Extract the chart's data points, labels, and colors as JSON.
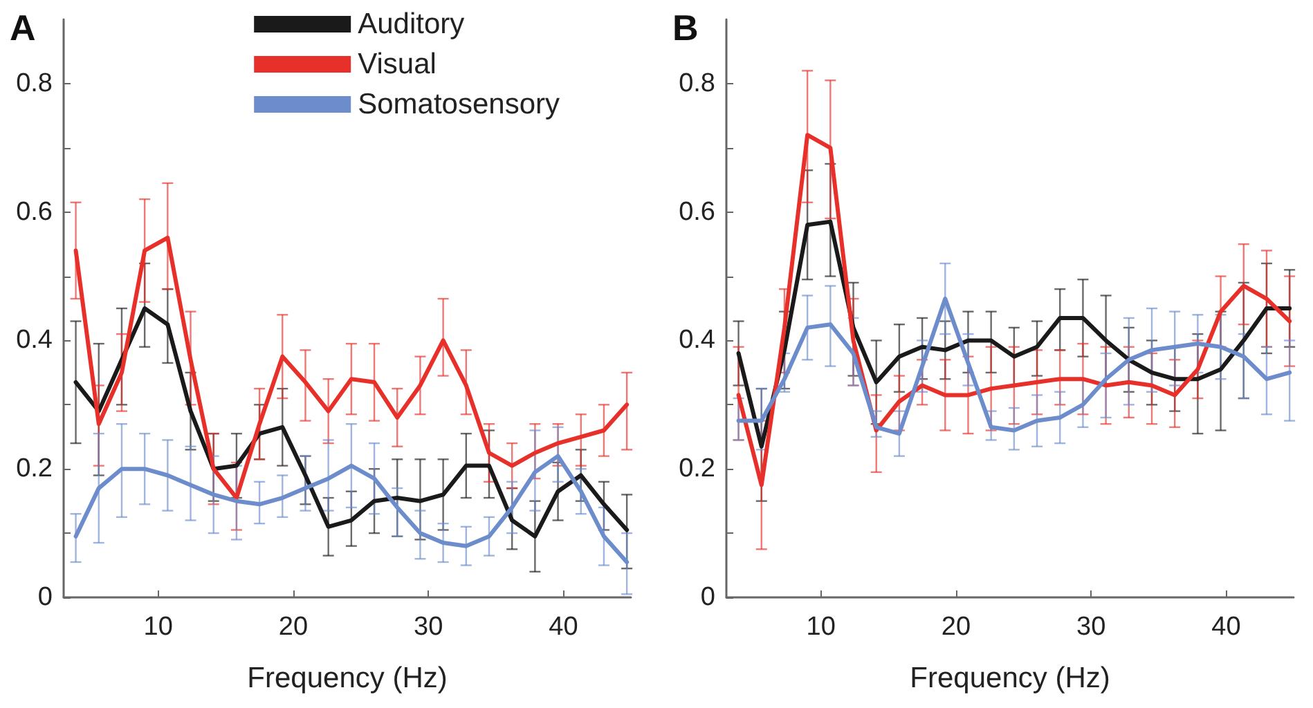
{
  "chart_data": [
    {
      "type": "line",
      "title": "A",
      "xlabel": "Frequency (Hz)",
      "x": [
        3.9,
        5.6,
        7.3,
        9.0,
        10.7,
        12.4,
        14.1,
        15.8,
        17.5,
        19.2,
        20.9,
        22.6,
        24.3,
        26.0,
        27.7,
        29.4,
        31.1,
        32.8,
        34.5,
        36.2,
        37.9,
        39.6,
        41.3,
        43.0,
        44.7
      ],
      "xlim": [
        3,
        45
      ],
      "xticks": [
        10,
        20,
        30,
        40
      ],
      "ylim": [
        0,
        0.9
      ],
      "yticks": [
        0,
        {
          "value": 0.1,
          "label": null
        },
        0.2,
        {
          "value": 0.3,
          "label": null
        },
        0.4,
        {
          "value": 0.5,
          "label": null
        },
        0.6,
        {
          "value": 0.7,
          "label": null
        },
        0.8
      ],
      "grid": false,
      "legend": "top",
      "marker": "none",
      "line_style": "solid",
      "series": [
        {
          "name": "Auditory",
          "color": "#1a1a1a",
          "values": [
            0.335,
            0.29,
            0.37,
            0.45,
            0.425,
            0.29,
            0.2,
            0.205,
            0.255,
            0.265,
            0.19,
            0.11,
            0.12,
            0.15,
            0.155,
            0.15,
            0.16,
            0.205,
            0.205,
            0.12,
            0.095,
            0.165,
            0.19,
            0.145,
            0.105
          ],
          "errors": [
            [
              0.24,
              0.43
            ],
            [
              0.19,
              0.395
            ],
            [
              0.3,
              0.45
            ],
            [
              0.39,
              0.52
            ],
            [
              0.365,
              0.48
            ],
            [
              0.23,
              0.35
            ],
            [
              0.15,
              0.255
            ],
            [
              0.155,
              0.255
            ],
            [
              0.215,
              0.3
            ],
            [
              0.205,
              0.325
            ],
            [
              0.145,
              0.22
            ],
            [
              0.065,
              0.155
            ],
            [
              0.08,
              0.165
            ],
            [
              0.1,
              0.2
            ],
            [
              0.095,
              0.215
            ],
            [
              0.09,
              0.215
            ],
            [
              0.105,
              0.215
            ],
            [
              0.155,
              0.255
            ],
            [
              0.155,
              0.26
            ],
            [
              0.075,
              0.17
            ],
            [
              0.04,
              0.15
            ],
            [
              0.12,
              0.21
            ],
            [
              0.15,
              0.23
            ],
            [
              0.105,
              0.18
            ],
            [
              0.045,
              0.16
            ]
          ]
        },
        {
          "name": "Visual",
          "color": "#e8302a",
          "values": [
            0.54,
            0.27,
            0.35,
            0.54,
            0.56,
            0.37,
            0.2,
            0.155,
            0.27,
            0.375,
            0.335,
            0.29,
            0.34,
            0.335,
            0.28,
            0.33,
            0.4,
            0.33,
            0.225,
            0.205,
            0.225,
            0.24,
            0.25,
            0.26,
            0.3
          ],
          "errors": [
            [
              0.465,
              0.615
            ],
            [
              0.205,
              0.33
            ],
            [
              0.29,
              0.41
            ],
            [
              0.46,
              0.62
            ],
            [
              0.48,
              0.645
            ],
            [
              0.3,
              0.445
            ],
            [
              0.145,
              0.255
            ],
            [
              0.105,
              0.21
            ],
            [
              0.215,
              0.325
            ],
            [
              0.31,
              0.44
            ],
            [
              0.275,
              0.385
            ],
            [
              0.24,
              0.34
            ],
            [
              0.285,
              0.395
            ],
            [
              0.275,
              0.395
            ],
            [
              0.235,
              0.325
            ],
            [
              0.285,
              0.375
            ],
            [
              0.345,
              0.465
            ],
            [
              0.285,
              0.385
            ],
            [
              0.18,
              0.27
            ],
            [
              0.17,
              0.24
            ],
            [
              0.185,
              0.27
            ],
            [
              0.205,
              0.27
            ],
            [
              0.205,
              0.285
            ],
            [
              0.22,
              0.3
            ],
            [
              0.23,
              0.35
            ]
          ]
        },
        {
          "name": "Somatosensory",
          "color": "#6c8ccc",
          "values": [
            0.095,
            0.17,
            0.2,
            0.2,
            0.19,
            0.175,
            0.16,
            0.15,
            0.145,
            0.155,
            0.17,
            0.185,
            0.205,
            0.185,
            0.14,
            0.1,
            0.085,
            0.08,
            0.095,
            0.14,
            0.195,
            0.22,
            0.165,
            0.095,
            0.055
          ],
          "errors": [
            [
              0.055,
              0.13
            ],
            [
              0.085,
              0.255
            ],
            [
              0.125,
              0.27
            ],
            [
              0.145,
              0.255
            ],
            [
              0.135,
              0.245
            ],
            [
              0.12,
              0.235
            ],
            [
              0.1,
              0.22
            ],
            [
              0.09,
              0.205
            ],
            [
              0.115,
              0.18
            ],
            [
              0.125,
              0.19
            ],
            [
              0.135,
              0.22
            ],
            [
              0.135,
              0.245
            ],
            [
              0.14,
              0.27
            ],
            [
              0.13,
              0.24
            ],
            [
              0.095,
              0.17
            ],
            [
              0.06,
              0.135
            ],
            [
              0.055,
              0.115
            ],
            [
              0.05,
              0.11
            ],
            [
              0.065,
              0.125
            ],
            [
              0.1,
              0.18
            ],
            [
              0.135,
              0.26
            ],
            [
              0.18,
              0.265
            ],
            [
              0.13,
              0.2
            ],
            [
              0.05,
              0.14
            ],
            [
              0.005,
              0.1
            ]
          ]
        }
      ]
    },
    {
      "type": "line",
      "title": "B",
      "xlabel": "Frequency (Hz)",
      "x": [
        3.9,
        5.6,
        7.3,
        9.0,
        10.7,
        12.4,
        14.1,
        15.8,
        17.5,
        19.2,
        20.9,
        22.6,
        24.3,
        26.0,
        27.7,
        29.4,
        31.1,
        32.8,
        34.5,
        36.2,
        37.9,
        39.6,
        41.3,
        43.0,
        44.7
      ],
      "xlim": [
        3,
        45
      ],
      "xticks": [
        10,
        20,
        30,
        40
      ],
      "ylim": [
        0,
        0.9
      ],
      "yticks": [
        0,
        {
          "value": 0.1,
          "label": null
        },
        0.2,
        {
          "value": 0.3,
          "label": null
        },
        0.4,
        {
          "value": 0.5,
          "label": null
        },
        0.6,
        {
          "value": 0.7,
          "label": null
        },
        0.8
      ],
      "grid": false,
      "marker": "none",
      "line_style": "solid",
      "series": [
        {
          "color": "#1a1a1a",
          "values": [
            0.38,
            0.235,
            0.385,
            0.58,
            0.585,
            0.42,
            0.335,
            0.375,
            0.39,
            0.385,
            0.4,
            0.4,
            0.375,
            0.39,
            0.435,
            0.435,
            0.4,
            0.37,
            0.35,
            0.34,
            0.34,
            0.355,
            0.4,
            0.45,
            0.45
          ],
          "errors": [
            [
              0.33,
              0.43
            ],
            [
              0.15,
              0.325
            ],
            [
              0.325,
              0.445
            ],
            [
              0.495,
              0.665
            ],
            [
              0.5,
              0.675
            ],
            [
              0.345,
              0.49
            ],
            [
              0.27,
              0.4
            ],
            [
              0.32,
              0.425
            ],
            [
              0.34,
              0.435
            ],
            [
              0.34,
              0.43
            ],
            [
              0.35,
              0.445
            ],
            [
              0.35,
              0.445
            ],
            [
              0.33,
              0.42
            ],
            [
              0.345,
              0.43
            ],
            [
              0.385,
              0.48
            ],
            [
              0.375,
              0.495
            ],
            [
              0.33,
              0.47
            ],
            [
              0.32,
              0.42
            ],
            [
              0.3,
              0.4
            ],
            [
              0.29,
              0.39
            ],
            [
              0.255,
              0.41
            ],
            [
              0.26,
              0.445
            ],
            [
              0.31,
              0.49
            ],
            [
              0.38,
              0.52
            ],
            [
              0.39,
              0.51
            ]
          ]
        },
        {
          "color": "#e8302a",
          "values": [
            0.315,
            0.175,
            0.42,
            0.72,
            0.7,
            0.4,
            0.26,
            0.305,
            0.33,
            0.315,
            0.315,
            0.325,
            0.33,
            0.335,
            0.34,
            0.34,
            0.33,
            0.335,
            0.33,
            0.315,
            0.355,
            0.445,
            0.485,
            0.465,
            0.43
          ],
          "errors": [
            [
              0.245,
              0.39
            ],
            [
              0.075,
              0.275
            ],
            [
              0.35,
              0.48
            ],
            [
              0.615,
              0.82
            ],
            [
              0.59,
              0.805
            ],
            [
              0.33,
              0.465
            ],
            [
              0.195,
              0.315
            ],
            [
              0.26,
              0.345
            ],
            [
              0.3,
              0.37
            ],
            [
              0.26,
              0.37
            ],
            [
              0.255,
              0.375
            ],
            [
              0.26,
              0.39
            ],
            [
              0.27,
              0.39
            ],
            [
              0.285,
              0.385
            ],
            [
              0.3,
              0.385
            ],
            [
              0.285,
              0.395
            ],
            [
              0.27,
              0.39
            ],
            [
              0.28,
              0.39
            ],
            [
              0.27,
              0.38
            ],
            [
              0.265,
              0.37
            ],
            [
              0.31,
              0.4
            ],
            [
              0.39,
              0.5
            ],
            [
              0.425,
              0.55
            ],
            [
              0.39,
              0.54
            ],
            [
              0.36,
              0.5
            ]
          ]
        },
        {
          "color": "#6c8ccc",
          "values": [
            0.275,
            0.275,
            0.34,
            0.42,
            0.425,
            0.38,
            0.265,
            0.255,
            0.36,
            0.465,
            0.365,
            0.265,
            0.26,
            0.275,
            0.28,
            0.3,
            0.34,
            0.37,
            0.385,
            0.39,
            0.395,
            0.39,
            0.375,
            0.34,
            0.35
          ],
          "errors": [
            [
              0.245,
              0.31
            ],
            [
              0.23,
              0.325
            ],
            [
              0.32,
              0.38
            ],
            [
              0.37,
              0.47
            ],
            [
              0.36,
              0.485
            ],
            [
              0.33,
              0.435
            ],
            [
              0.25,
              0.29
            ],
            [
              0.22,
              0.29
            ],
            [
              0.32,
              0.4
            ],
            [
              0.41,
              0.52
            ],
            [
              0.33,
              0.41
            ],
            [
              0.245,
              0.29
            ],
            [
              0.23,
              0.295
            ],
            [
              0.235,
              0.315
            ],
            [
              0.24,
              0.32
            ],
            [
              0.265,
              0.34
            ],
            [
              0.28,
              0.38
            ],
            [
              0.3,
              0.435
            ],
            [
              0.32,
              0.45
            ],
            [
              0.33,
              0.445
            ],
            [
              0.35,
              0.44
            ],
            [
              0.34,
              0.44
            ],
            [
              0.31,
              0.41
            ],
            [
              0.285,
              0.39
            ],
            [
              0.275,
              0.4
            ]
          ]
        }
      ]
    }
  ]
}
